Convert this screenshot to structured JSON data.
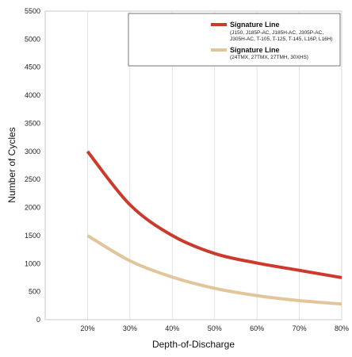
{
  "chart_data": {
    "type": "line",
    "title": "",
    "xlabel": "Depth-of-Discharge",
    "ylabel": "Number of Cycles",
    "xlim": [
      10,
      80
    ],
    "ylim": [
      0,
      5500
    ],
    "x_ticks": [
      "20%",
      "30%",
      "40%",
      "50%",
      "60%",
      "70%",
      "80%"
    ],
    "y_ticks": [
      "0",
      "500",
      "1000",
      "1500",
      "2000",
      "2500",
      "3000",
      "3500",
      "4000",
      "4500",
      "5000",
      "5500"
    ],
    "grid": "vertical",
    "legend_position": "top-right",
    "series": [
      {
        "name": "Signature Line",
        "models": [
          "(J150, J185P-AC, J185H-AC, J305P-AC,",
          "J305H-AC, T-105, T-125, T-145, L16P, L16H)"
        ],
        "color": "#cc3a2e",
        "x": [
          20,
          30,
          40,
          50,
          60,
          70,
          80
        ],
        "y": [
          3000,
          2050,
          1500,
          1180,
          1010,
          880,
          750
        ]
      },
      {
        "name": "Signature Line",
        "models": [
          "(24TMX, 27TMX, 27TMH, 30XHS)"
        ],
        "color": "#e2c59a",
        "x": [
          20,
          30,
          40,
          50,
          60,
          70,
          80
        ],
        "y": [
          1500,
          1050,
          760,
          560,
          430,
          340,
          280
        ]
      }
    ]
  }
}
